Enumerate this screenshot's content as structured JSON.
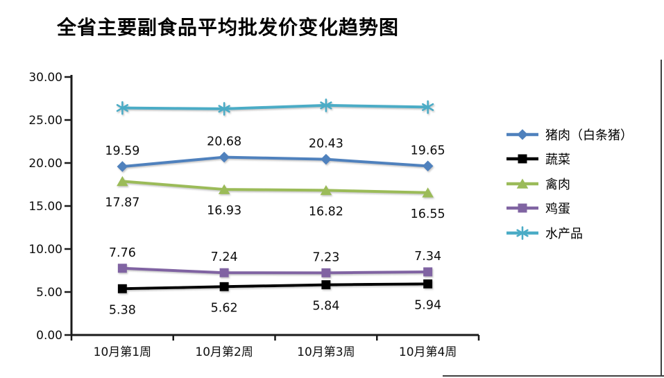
{
  "title": "全省主要副食品平均批发价变化趋势图",
  "chart_data": {
    "type": "line",
    "title": "全省主要副食品平均批发价变化趋势图",
    "categories": [
      "10月第1周",
      "10月第2周",
      "10月第3周",
      "10月第4周"
    ],
    "series": [
      {
        "name": "猪肉（白条猪）",
        "color": "#4f81bd",
        "marker": "diamond",
        "values": [
          19.59,
          20.68,
          20.43,
          19.65
        ],
        "data_labels": [
          "19.59",
          "20.68",
          "20.43",
          "19.65"
        ],
        "label_position": "above"
      },
      {
        "name": "蔬菜",
        "color": "#000000",
        "marker": "square",
        "values": [
          5.38,
          5.62,
          5.84,
          5.94
        ],
        "data_labels": [
          "5.38",
          "5.62",
          "5.84",
          "5.94"
        ],
        "label_position": "below"
      },
      {
        "name": "禽肉",
        "color": "#9bbb59",
        "marker": "triangle",
        "values": [
          17.87,
          16.93,
          16.82,
          16.55
        ],
        "data_labels": [
          "17.87",
          "16.93",
          "16.82",
          "16.55"
        ],
        "label_position": "below"
      },
      {
        "name": "鸡蛋",
        "color": "#8064a2",
        "marker": "square",
        "values": [
          7.76,
          7.24,
          7.23,
          7.34
        ],
        "data_labels": [
          "7.76",
          "7.24",
          "7.23",
          "7.34"
        ],
        "label_position": "above"
      },
      {
        "name": "水产品",
        "color": "#4bacc6",
        "marker": "asterisk",
        "values": [
          26.4,
          26.3,
          26.7,
          26.5
        ],
        "data_labels": null,
        "label_position": "none"
      }
    ],
    "ylim": [
      0,
      30
    ],
    "ytick_step": 5,
    "ytick_labels": [
      "0.00",
      "5.00",
      "10.00",
      "15.00",
      "20.00",
      "25.00",
      "30.00"
    ],
    "xlabel": "",
    "ylabel": "",
    "grid": false,
    "legend_position": "right",
    "axis_color": "#1a1a1a",
    "text_color": "#0d0d0d"
  },
  "page_border_color": "#3f3f3f"
}
